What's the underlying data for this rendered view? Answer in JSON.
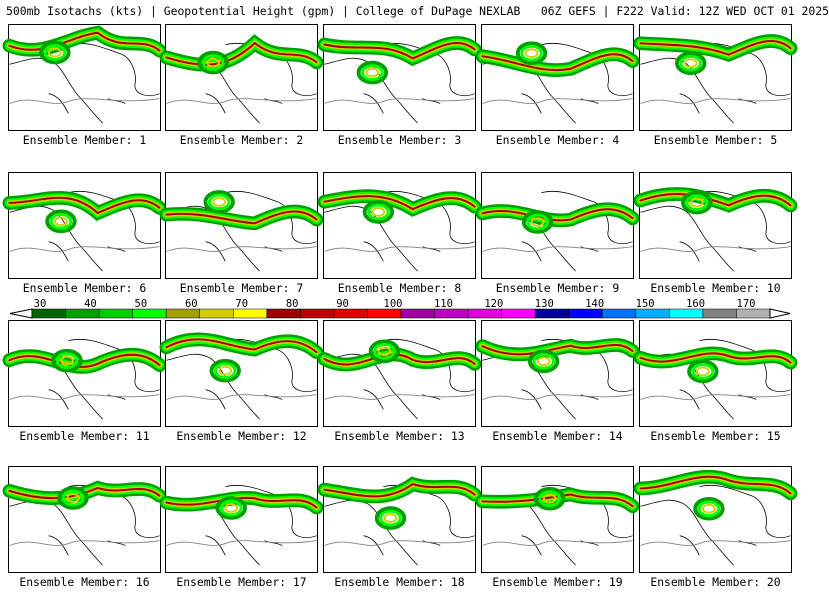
{
  "title": "500mb Isotachs (kts) | Geopotential Height (gpm) | College of DuPage NEXLAB   06Z GEFS | F222 Valid: 12Z WED OCT 01 2025",
  "member_label_prefix": "Ensemble Member: ",
  "members": [
    1,
    2,
    3,
    4,
    5,
    6,
    7,
    8,
    9,
    10,
    11,
    12,
    13,
    14,
    15,
    16,
    17,
    18,
    19,
    20
  ],
  "colorbar": {
    "ticks": [
      "30",
      "40",
      "50",
      "60",
      "70",
      "80",
      "90",
      "100",
      "110",
      "120",
      "130",
      "140",
      "150",
      "160",
      "170"
    ],
    "colors": [
      "#006400",
      "#00a000",
      "#00d000",
      "#00ff00",
      "#a0a000",
      "#d0d000",
      "#ffff00",
      "#a00000",
      "#c00000",
      "#e00000",
      "#ff0000",
      "#a000a0",
      "#c000c0",
      "#e000e0",
      "#ff00ff",
      "#0000a0",
      "#0000ff",
      "#0070ff",
      "#00b0ff",
      "#00ffff",
      "#808080",
      "#b0b0b0"
    ]
  }
}
